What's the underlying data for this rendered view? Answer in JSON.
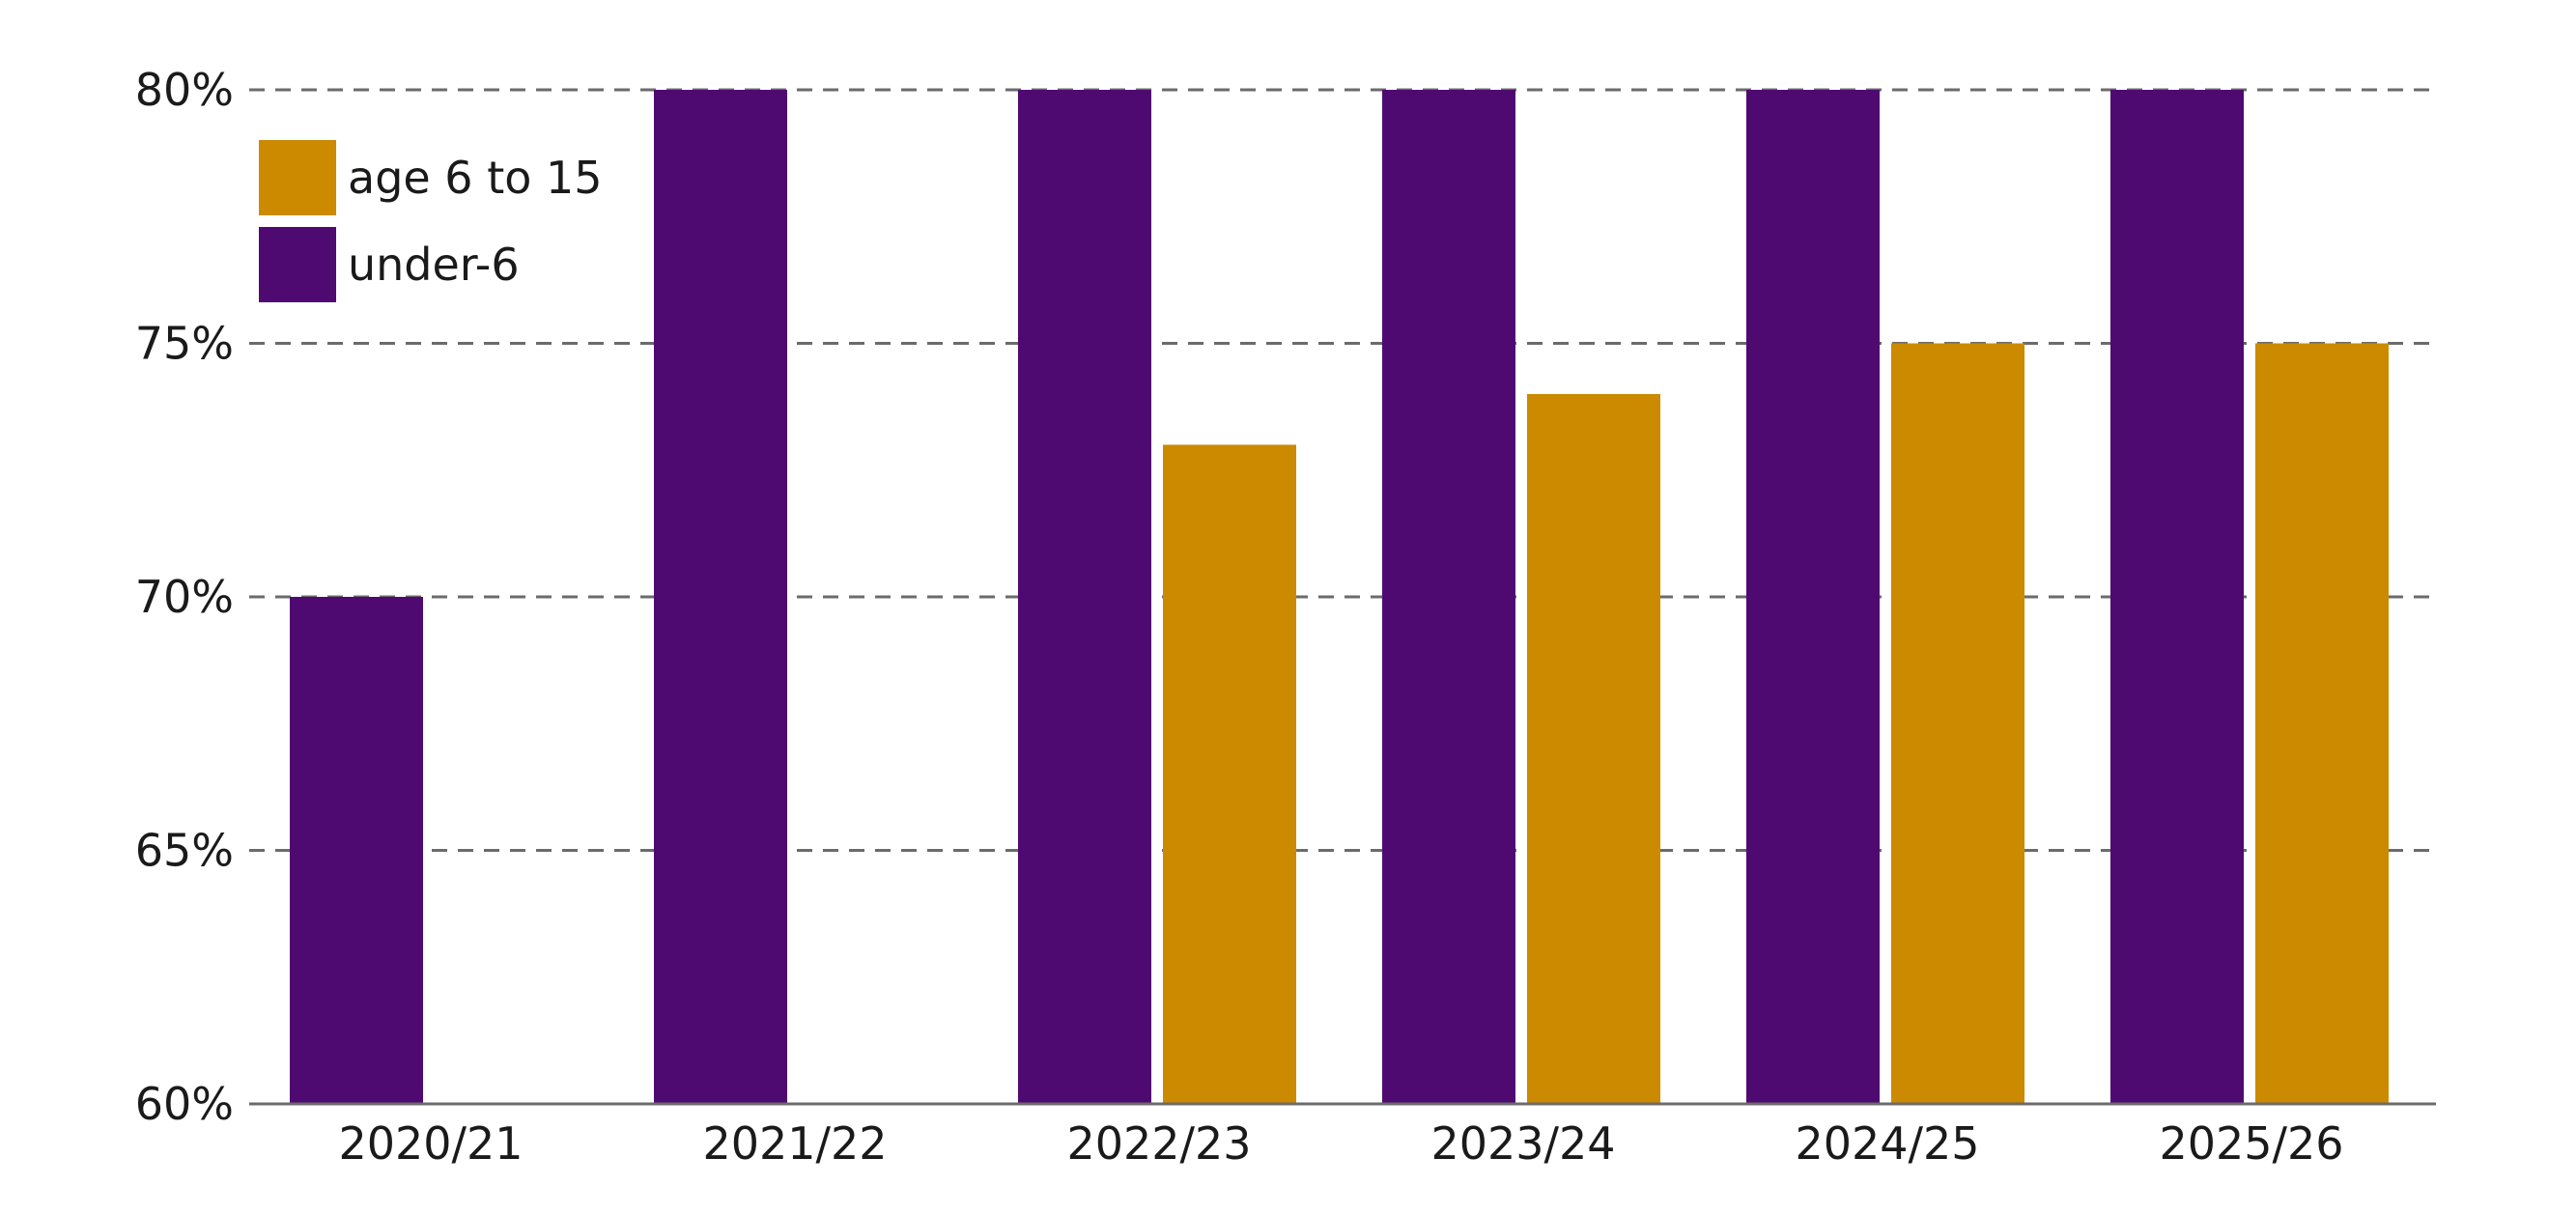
{
  "chart_data": {
    "type": "bar",
    "title": "",
    "xlabel": "",
    "ylabel": "",
    "categories": [
      "2020/21",
      "2021/22",
      "2022/23",
      "2023/24",
      "2024/25",
      "2025/26"
    ],
    "series": [
      {
        "name": "under-6",
        "color": "#4f0a72",
        "values": [
          70,
          80,
          80,
          80,
          80,
          80
        ]
      },
      {
        "name": "age 6 to 15",
        "color": "#cc8a00",
        "values": [
          null,
          null,
          73,
          74,
          75,
          75
        ]
      }
    ],
    "ylim": [
      60,
      80
    ],
    "yticks": [
      60,
      65,
      70,
      75,
      80
    ],
    "ytick_suffix": "%",
    "ytick_labels": [
      "60%",
      "65%",
      "70%",
      "75%",
      "80%"
    ],
    "grid": "dashed horizontal",
    "legend": {
      "position": "top-left",
      "entries": [
        {
          "label": "age 6 to 15",
          "color": "#cc8a00"
        },
        {
          "label": "under-6",
          "color": "#4f0a72"
        }
      ]
    }
  }
}
